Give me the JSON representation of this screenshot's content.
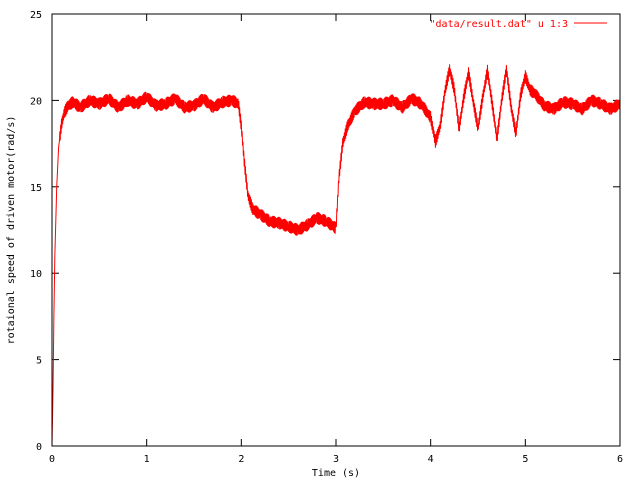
{
  "chart_data": {
    "type": "line",
    "title": "",
    "xlabel": "Time (s)",
    "ylabel": "rotaional speed of driven motor(rad/s)",
    "xlim": [
      0,
      6
    ],
    "ylim": [
      0,
      25
    ],
    "xticks": [
      0,
      1,
      2,
      3,
      4,
      5,
      6
    ],
    "yticks": [
      0,
      5,
      10,
      15,
      20,
      25
    ],
    "grid": false,
    "legend": {
      "position": "top-right"
    },
    "colors": {
      "series": "#ff0000",
      "axes": "#000000"
    },
    "series": [
      {
        "name": "\"data/result.dat\" u 1:3",
        "x": [
          0,
          0.01,
          0.02,
          0.03,
          0.05,
          0.07,
          0.1,
          0.13,
          0.17,
          0.22,
          0.3,
          0.4,
          0.5,
          0.6,
          0.7,
          0.8,
          0.9,
          1.0,
          1.1,
          1.2,
          1.3,
          1.4,
          1.5,
          1.6,
          1.7,
          1.8,
          1.9,
          1.97,
          2.0,
          2.03,
          2.07,
          2.12,
          2.2,
          2.3,
          2.4,
          2.5,
          2.6,
          2.7,
          2.8,
          2.9,
          3.0,
          3.03,
          3.07,
          3.12,
          3.2,
          3.3,
          3.4,
          3.5,
          3.6,
          3.7,
          3.8,
          3.9,
          4.0,
          4.05,
          4.1,
          4.15,
          4.2,
          4.25,
          4.3,
          4.35,
          4.4,
          4.45,
          4.5,
          4.55,
          4.6,
          4.65,
          4.7,
          4.75,
          4.8,
          4.85,
          4.9,
          4.95,
          5.0,
          5.05,
          5.1,
          5.2,
          5.3,
          5.4,
          5.5,
          5.6,
          5.7,
          5.8,
          5.9,
          6.0
        ],
        "y": [
          0,
          3.0,
          7.5,
          11.0,
          15.0,
          17.3,
          18.6,
          19.3,
          19.7,
          19.9,
          19.6,
          20.0,
          19.8,
          20.1,
          19.6,
          20.0,
          19.8,
          20.2,
          19.7,
          19.8,
          20.1,
          19.6,
          19.7,
          20.1,
          19.6,
          19.9,
          20.0,
          19.8,
          18.5,
          16.5,
          14.5,
          13.7,
          13.4,
          13.0,
          12.9,
          12.7,
          12.5,
          12.8,
          13.2,
          13.0,
          12.6,
          15.5,
          17.5,
          18.5,
          19.4,
          19.9,
          19.8,
          19.8,
          20.0,
          19.6,
          20.1,
          19.8,
          19.0,
          17.6,
          18.5,
          20.5,
          21.8,
          20.6,
          18.4,
          20.2,
          21.6,
          19.9,
          18.4,
          20.2,
          21.7,
          19.8,
          17.8,
          20.0,
          21.8,
          19.6,
          18.1,
          20.3,
          21.4,
          20.6,
          20.4,
          19.7,
          19.5,
          19.9,
          19.8,
          19.5,
          20.0,
          19.8,
          19.5,
          19.8
        ]
      }
    ]
  }
}
